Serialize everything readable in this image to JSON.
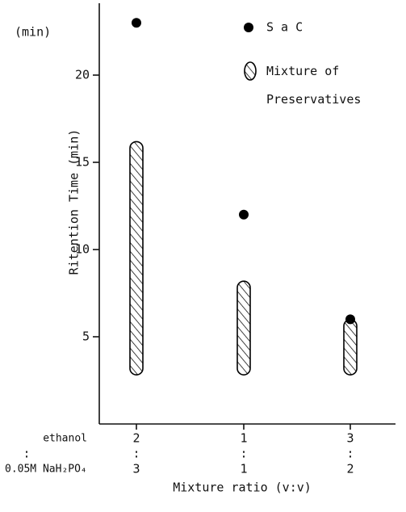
{
  "chart_data": {
    "type": "scatter",
    "y_unit_label": "(min)",
    "y_label": "Ritention Time (min)",
    "x_label": "Mixture ratio (v:v)",
    "category_rows": [
      {
        "label": "ethanol",
        "values": [
          "2",
          "1",
          "3"
        ]
      },
      {
        "label": "0.05M NaH₂PO₄",
        "values": [
          "3",
          "1",
          "2"
        ]
      }
    ],
    "separator": ":",
    "series": [
      {
        "name": "S a C",
        "type": "scatter",
        "color": "#000000",
        "values": [
          23,
          12,
          6
        ]
      },
      {
        "name": "Mixture of Preservatives",
        "type": "range",
        "color": "#000000",
        "low": [
          3,
          3,
          3
        ],
        "high": [
          16,
          8,
          5.8
        ]
      }
    ],
    "ylim": [
      0,
      24
    ],
    "yticks": [
      5,
      10,
      15,
      20
    ]
  }
}
